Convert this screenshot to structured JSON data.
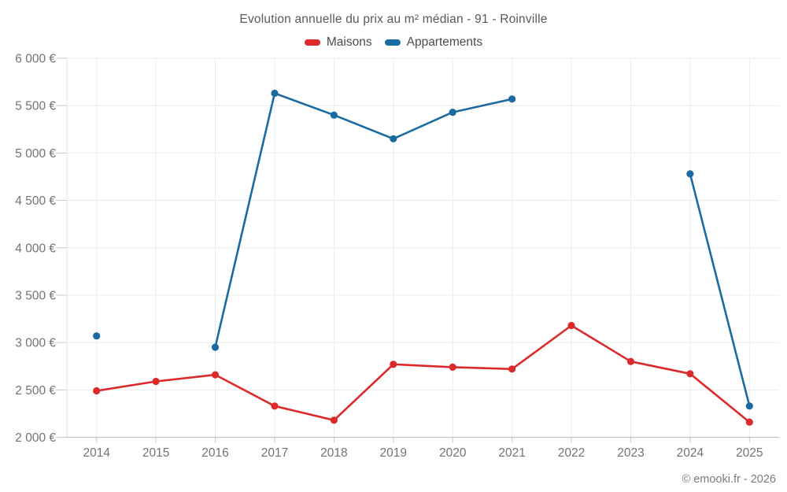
{
  "title": "Evolution annuelle du prix au m² médian - 91 - Roinville",
  "legend": {
    "items": [
      {
        "id": "maisons",
        "label": "Maisons",
        "color": "#dc2a2a"
      },
      {
        "id": "appartements",
        "label": "Appartements",
        "color": "#1a6ba0"
      }
    ]
  },
  "footer": {
    "credit": "© emooki.fr - 2026"
  },
  "colors": {
    "grid": "#ececec",
    "axis_bottom": "#c3c3c3",
    "axis_left": "#e2e2e2",
    "tick": "#c9c9c9",
    "tick_label": "#737373"
  },
  "chart_data": {
    "type": "line",
    "title": "Evolution annuelle du prix au m² médian - 91 - Roinville",
    "xlabel": "",
    "ylabel": "",
    "x": [
      "2014",
      "2015",
      "2016",
      "2017",
      "2018",
      "2019",
      "2020",
      "2021",
      "2022",
      "2023",
      "2024",
      "2025"
    ],
    "series": [
      {
        "name": "Maisons",
        "color": "#dc2a2a",
        "values": [
          2490,
          2590,
          2660,
          2330,
          2180,
          2770,
          2740,
          2720,
          3180,
          2800,
          2670,
          2160
        ]
      },
      {
        "name": "Appartements",
        "color": "#1a6ba0",
        "values": [
          3070,
          null,
          2950,
          5630,
          5400,
          5150,
          5430,
          5570,
          null,
          null,
          4780,
          2330
        ]
      }
    ],
    "ylim": [
      2000,
      6000
    ],
    "ytick_step": 500,
    "y_tick_labels": [
      "2 000 €",
      "2 500 €",
      "3 000 €",
      "3 500 €",
      "4 000 €",
      "4 500 €",
      "5 000 €",
      "5 500 €",
      "6 000 €"
    ],
    "grid": true,
    "legend_position": "top",
    "currency_suffix": "€"
  }
}
